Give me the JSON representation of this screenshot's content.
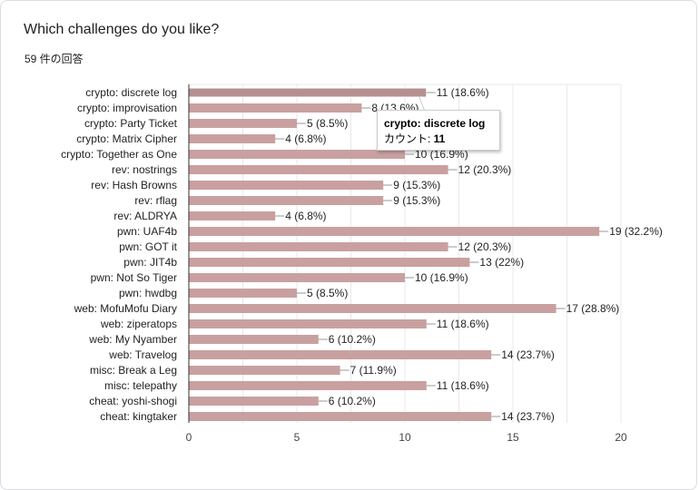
{
  "header": {
    "question": "Which challenges do you like?",
    "response_count": "59 件の回答"
  },
  "colors": {
    "bar": "#c9a0a0",
    "bar_highlight": "#b59090",
    "grid": "#e8e8e8",
    "axis": "#333333"
  },
  "tooltip": {
    "title": "crypto: discrete log",
    "value_label": "カウント: ",
    "value": "11"
  },
  "chart_data": {
    "type": "bar",
    "orientation": "horizontal",
    "title": "Which challenges do you like?",
    "xlabel": "",
    "ylabel": "",
    "xlim": [
      0,
      20
    ],
    "xticks": [
      0,
      5,
      10,
      15,
      20
    ],
    "grid": true,
    "categories": [
      "crypto: discrete log",
      "crypto: improvisation",
      "crypto: Party Ticket",
      "crypto: Matrix Cipher",
      "crypto: Together as One",
      "rev: nostrings",
      "rev: Hash Browns",
      "rev: rflag",
      "rev: ALDRYA",
      "pwn: UAF4b",
      "pwn: GOT it",
      "pwn: JIT4b",
      "pwn: Not So Tiger",
      "pwn: hwdbg",
      "web: MofuMofu Diary",
      "web: ziperatops",
      "web: My Nyamber",
      "web: Travelog",
      "misc: Break a Leg",
      "misc: telepathy",
      "cheat: yoshi-shogi",
      "cheat: kingtaker"
    ],
    "values": [
      11,
      8,
      5,
      4,
      10,
      12,
      9,
      9,
      4,
      19,
      12,
      13,
      10,
      5,
      17,
      11,
      6,
      14,
      7,
      11,
      6,
      14
    ],
    "data_labels": [
      "11 (18.6%)",
      "8 (13.6%)",
      "5 (8.5%)",
      "4 (6.8%)",
      "10 (16.9%)",
      "12 (20.3%)",
      "9 (15.3%)",
      "9 (15.3%)",
      "4 (6.8%)",
      "19 (32.2%)",
      "12 (20.3%)",
      "13 (22%)",
      "10 (16.9%)",
      "5 (8.5%)",
      "17 (28.8%)",
      "11 (18.6%)",
      "6 (10.2%)",
      "14 (23.7%)",
      "7 (11.9%)",
      "11 (18.6%)",
      "6 (10.2%)",
      "14 (23.7%)"
    ],
    "highlighted_index": 0
  }
}
